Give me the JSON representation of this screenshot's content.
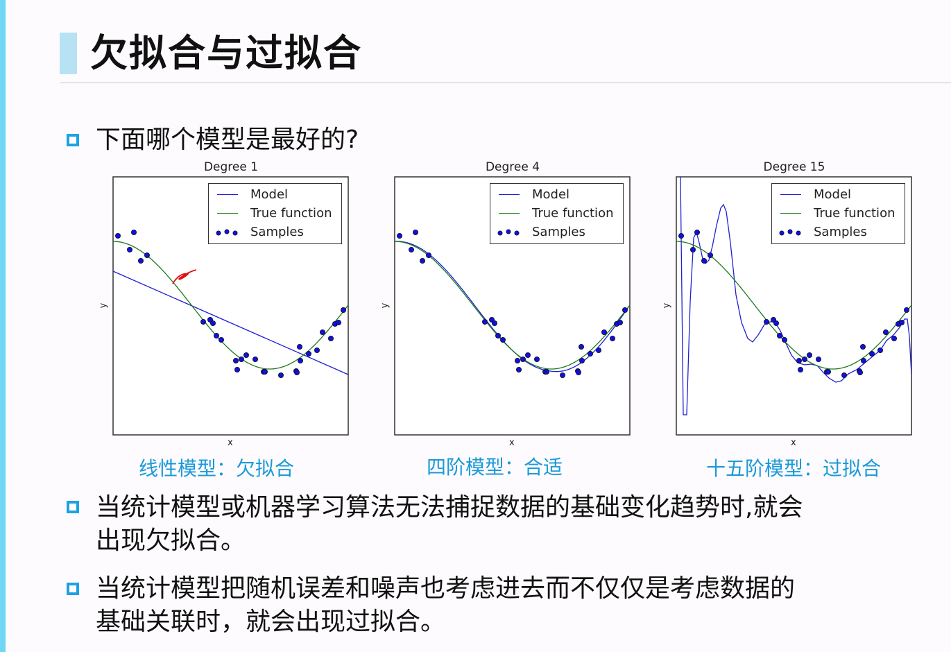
{
  "slide": {
    "title": "欠拟合与过拟合",
    "question": "下面哪个模型是最好的?",
    "bullets": [
      {
        "line1": "当统计模型或机器学习算法无法捕捉数据的基础变化趋势时,就会",
        "line2": "出现欠拟合。"
      },
      {
        "line1": "当统计模型把随机误差和噪声也考虑进去而不仅仅是考虑数据的",
        "line2": "基础关联时，就会出现过拟合。"
      }
    ],
    "captions": [
      "线性模型：欠拟合",
      "四阶模型：合适",
      "十五阶模型：过拟合"
    ],
    "colors": {
      "accent": "#1ea0e6",
      "caption": "#1a9ad8",
      "left_bar": "#6fd6f4",
      "title_marker": "#b6e2f4",
      "model": "#1f1fd6",
      "true_function": "#1a7a1a",
      "samples": "#1010e0",
      "annotation": "#e01010"
    }
  },
  "legend": {
    "model": "Model",
    "true_function": "True function",
    "samples": "Samples"
  },
  "chart_data": [
    {
      "type": "line",
      "title": "Degree 1",
      "xlabel": "x",
      "ylabel": "y",
      "grid": false,
      "legend_position": "upper right",
      "ticks": "none",
      "series": [
        {
          "name": "Model",
          "kind": "line",
          "description": "linear fit, decreasing from upper-left to lower-right"
        },
        {
          "name": "True function",
          "kind": "line",
          "description": "cosine-like curve, high at left, minimum near x≈0.7, rising at right"
        },
        {
          "name": "Samples",
          "kind": "scatter",
          "count": 30
        }
      ],
      "annotation": "red handwritten mark near the true-function curve"
    },
    {
      "type": "line",
      "title": "Degree 4",
      "xlabel": "x",
      "ylabel": "y",
      "grid": false,
      "legend_position": "upper right",
      "ticks": "none",
      "series": [
        {
          "name": "Model",
          "kind": "line",
          "description": "4th-degree polynomial fit closely matching true function"
        },
        {
          "name": "True function",
          "kind": "line"
        },
        {
          "name": "Samples",
          "kind": "scatter",
          "count": 30
        }
      ]
    },
    {
      "type": "line",
      "title": "Degree 15",
      "xlabel": "x",
      "ylabel": "y",
      "grid": false,
      "legend_position": "upper right",
      "ticks": "none",
      "series": [
        {
          "name": "Model",
          "kind": "line",
          "description": "15th-degree polynomial oscillating wildly, passing through samples, large spikes at edges"
        },
        {
          "name": "True function",
          "kind": "line"
        },
        {
          "name": "Samples",
          "kind": "scatter",
          "count": 30
        }
      ]
    }
  ]
}
